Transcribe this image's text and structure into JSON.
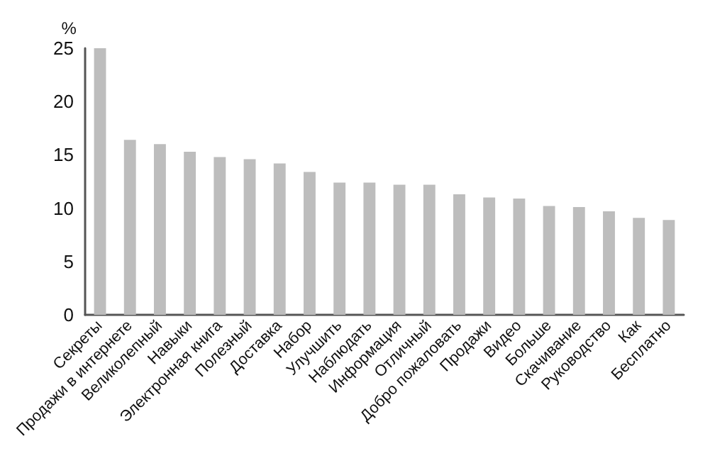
{
  "chart_data": {
    "type": "bar",
    "ylabel": "%",
    "categories": [
      "Секреты",
      "Продажи в интернете",
      "Великолепный",
      "Навыки",
      "Электронная книга",
      "Полезный",
      "Доставка",
      "Набор",
      "Улучшить",
      "Наблюдать",
      "Информация",
      "Отличный",
      "Добро пожаловать",
      "Продажи",
      "Видео",
      "Больше",
      "Скачивание",
      "Руководство",
      "Как",
      "Бесплатно"
    ],
    "values": [
      25.0,
      16.4,
      16.0,
      15.3,
      14.8,
      14.6,
      14.2,
      13.4,
      12.4,
      12.4,
      12.2,
      12.2,
      11.3,
      11.0,
      10.9,
      10.2,
      10.1,
      9.7,
      9.1,
      8.9
    ],
    "color": "#bdbdbd",
    "ylim": [
      0,
      25
    ],
    "yticks": [
      0,
      5,
      10,
      15,
      20,
      25
    ]
  }
}
